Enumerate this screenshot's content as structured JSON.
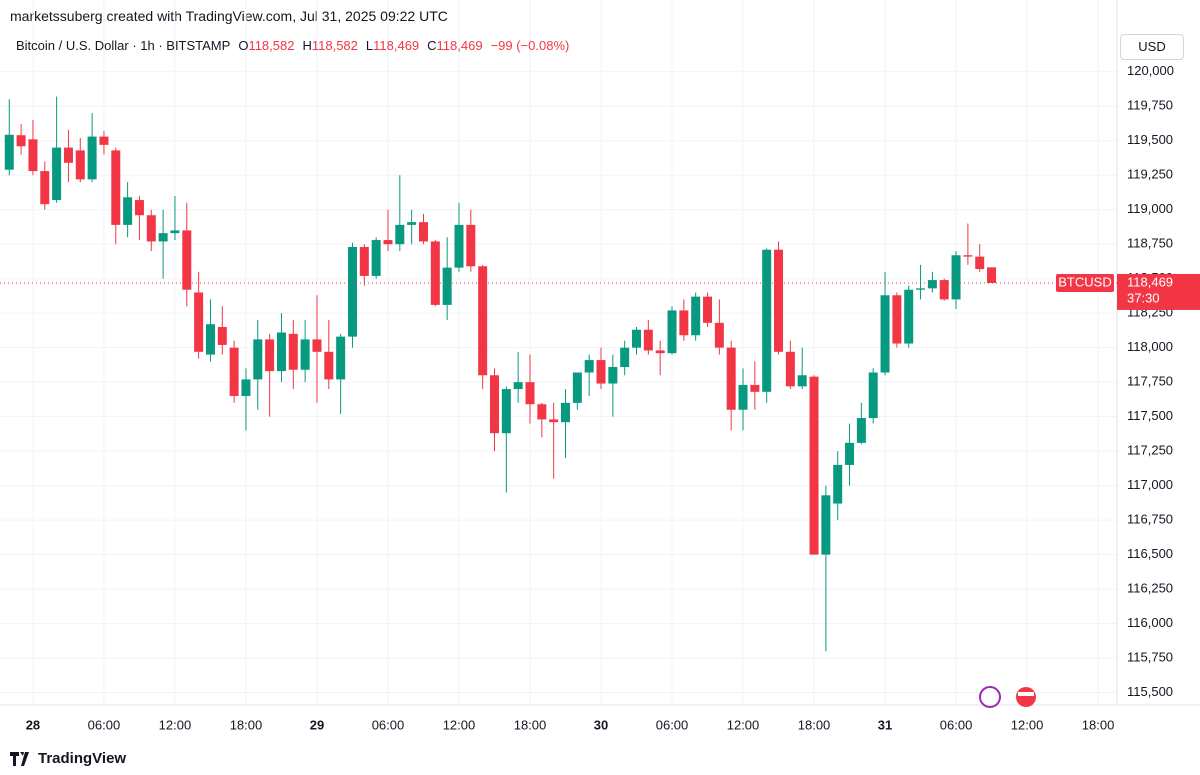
{
  "header": {
    "credit": "marketssuberg created with TradingView.com, Jul 31, 2025 09:22 UTC",
    "symbol": "Bitcoin / U.S. Dollar · 1h · BITSTAMP",
    "ohlc": [
      {
        "key": "O",
        "value": "118,582"
      },
      {
        "key": "H",
        "value": "118,582"
      },
      {
        "key": "L",
        "value": "118,469"
      },
      {
        "key": "C",
        "value": "118,469"
      }
    ],
    "change": "−99 (−0.08%)",
    "currency": "USD"
  },
  "footer": {
    "brand": "TradingView"
  },
  "chart_data": {
    "type": "candlestick",
    "up_color": "#089981",
    "down_color": "#f23645",
    "x": [
      "2025-07-27T22:00",
      "2025-07-27T23:00",
      "2025-07-28T00:00",
      "2025-07-28T01:00",
      "2025-07-28T02:00",
      "2025-07-28T03:00",
      "2025-07-28T04:00",
      "2025-07-28T05:00",
      "2025-07-28T06:00",
      "2025-07-28T07:00",
      "2025-07-28T08:00",
      "2025-07-28T09:00",
      "2025-07-28T10:00",
      "2025-07-28T11:00",
      "2025-07-28T12:00",
      "2025-07-28T13:00",
      "2025-07-28T14:00",
      "2025-07-28T15:00",
      "2025-07-28T16:00",
      "2025-07-28T17:00",
      "2025-07-28T18:00",
      "2025-07-28T19:00",
      "2025-07-28T20:00",
      "2025-07-28T21:00",
      "2025-07-28T22:00",
      "2025-07-28T23:00",
      "2025-07-29T00:00",
      "2025-07-29T01:00",
      "2025-07-29T02:00",
      "2025-07-29T03:00",
      "2025-07-29T04:00",
      "2025-07-29T05:00",
      "2025-07-29T06:00",
      "2025-07-29T07:00",
      "2025-07-29T08:00",
      "2025-07-29T09:00",
      "2025-07-29T10:00",
      "2025-07-29T11:00",
      "2025-07-29T12:00",
      "2025-07-29T13:00",
      "2025-07-29T14:00",
      "2025-07-29T15:00",
      "2025-07-29T16:00",
      "2025-07-29T17:00",
      "2025-07-29T18:00",
      "2025-07-29T19:00",
      "2025-07-29T20:00",
      "2025-07-29T21:00",
      "2025-07-29T22:00",
      "2025-07-29T23:00",
      "2025-07-30T00:00",
      "2025-07-30T01:00",
      "2025-07-30T02:00",
      "2025-07-30T03:00",
      "2025-07-30T04:00",
      "2025-07-30T05:00",
      "2025-07-30T06:00",
      "2025-07-30T07:00",
      "2025-07-30T08:00",
      "2025-07-30T09:00",
      "2025-07-30T10:00",
      "2025-07-30T11:00",
      "2025-07-30T12:00",
      "2025-07-30T13:00",
      "2025-07-30T14:00",
      "2025-07-30T15:00",
      "2025-07-30T16:00",
      "2025-07-30T17:00",
      "2025-07-30T18:00",
      "2025-07-30T19:00",
      "2025-07-30T20:00",
      "2025-07-30T21:00",
      "2025-07-30T22:00",
      "2025-07-30T23:00",
      "2025-07-31T00:00",
      "2025-07-31T01:00",
      "2025-07-31T02:00",
      "2025-07-31T03:00",
      "2025-07-31T04:00",
      "2025-07-31T05:00",
      "2025-07-31T06:00",
      "2025-07-31T07:00",
      "2025-07-31T08:00",
      "2025-07-31T09:00"
    ],
    "open": [
      119290,
      119540,
      119510,
      119280,
      119070,
      119450,
      119430,
      119220,
      119530,
      119430,
      118890,
      119070,
      118960,
      118770,
      118830,
      118850,
      118400,
      117950,
      118150,
      118000,
      117650,
      117770,
      118060,
      117830,
      118100,
      117840,
      118060,
      117970,
      117770,
      118080,
      118730,
      118520,
      118780,
      118750,
      118890,
      118910,
      118770,
      118310,
      118580,
      118890,
      118590,
      117800,
      117380,
      117700,
      117750,
      117590,
      117480,
      117460,
      117600,
      117820,
      117910,
      117740,
      117860,
      118000,
      118130,
      117980,
      117960,
      118270,
      118090,
      118370,
      118180,
      118000,
      117550,
      117730,
      117680,
      118710,
      117970,
      117720,
      117790,
      116500,
      116870,
      117150,
      117310,
      117490,
      117820,
      118380,
      118030,
      118420,
      118430,
      118490,
      118350,
      118670,
      118660,
      118582
    ],
    "high": [
      119800,
      119620,
      119650,
      119350,
      119820,
      119580,
      119520,
      119700,
      119570,
      119450,
      119200,
      119100,
      119000,
      119000,
      119100,
      119050,
      118550,
      118350,
      118300,
      118050,
      117850,
      118200,
      118100,
      118250,
      118200,
      118200,
      118380,
      118200,
      118100,
      118760,
      118750,
      118800,
      119000,
      119250,
      119000,
      118970,
      118780,
      118800,
      119050,
      119000,
      118600,
      117850,
      117720,
      117970,
      117950,
      117600,
      117600,
      117700,
      117820,
      117950,
      118000,
      117950,
      118050,
      118150,
      118200,
      118050,
      118300,
      118350,
      118400,
      118400,
      118350,
      118050,
      117850,
      117900,
      118720,
      118770,
      118050,
      118000,
      117800,
      117000,
      117250,
      117450,
      117600,
      117850,
      118550,
      118400,
      118450,
      118600,
      118550,
      118500,
      118700,
      118900,
      118750,
      118582
    ],
    "low": [
      119250,
      119400,
      119250,
      119000,
      119050,
      119200,
      119200,
      119200,
      119400,
      118750,
      118800,
      118780,
      118700,
      118500,
      118780,
      118300,
      117920,
      117900,
      117950,
      117600,
      117400,
      117550,
      117500,
      117750,
      117700,
      117750,
      117600,
      117700,
      117520,
      118000,
      118450,
      118500,
      118700,
      118700,
      118750,
      118750,
      118300,
      118200,
      118550,
      118550,
      117700,
      117250,
      116950,
      117600,
      117450,
      117350,
      117050,
      117200,
      117550,
      117650,
      117700,
      117500,
      117800,
      117950,
      117950,
      117800,
      117950,
      118050,
      118050,
      118150,
      117950,
      117400,
      117400,
      117550,
      117600,
      117950,
      117700,
      117700,
      116500,
      115800,
      116750,
      117000,
      117300,
      117450,
      117800,
      118000,
      118000,
      118350,
      118400,
      118340,
      118280,
      118600,
      118550,
      118469
    ],
    "close": [
      119543,
      119460,
      119280,
      119040,
      119450,
      119340,
      119220,
      119530,
      119470,
      118890,
      119090,
      118960,
      118770,
      118830,
      118850,
      118420,
      117970,
      118170,
      118020,
      117650,
      117770,
      118060,
      117830,
      118110,
      117840,
      118060,
      117970,
      117770,
      118080,
      118730,
      118520,
      118780,
      118750,
      118890,
      118910,
      118770,
      118310,
      118580,
      118890,
      118590,
      117800,
      117380,
      117700,
      117750,
      117590,
      117480,
      117460,
      117600,
      117820,
      117910,
      117740,
      117860,
      118000,
      118130,
      117980,
      117960,
      118270,
      118090,
      118370,
      118180,
      118000,
      117550,
      117730,
      117680,
      118710,
      117970,
      117720,
      117800,
      116500,
      116930,
      117150,
      117310,
      117490,
      117820,
      118380,
      118030,
      118420,
      118430,
      118490,
      118350,
      118670,
      118660,
      118570,
      118469
    ],
    "ylim": [
      115410,
      120520
    ],
    "yticks": [
      {
        "value": 115500,
        "label": "115,500"
      },
      {
        "value": 115750,
        "label": "115,750"
      },
      {
        "value": 116000,
        "label": "116,000"
      },
      {
        "value": 116250,
        "label": "116,250"
      },
      {
        "value": 116500,
        "label": "116,500"
      },
      {
        "value": 116750,
        "label": "116,750"
      },
      {
        "value": 117000,
        "label": "117,000"
      },
      {
        "value": 117250,
        "label": "117,250"
      },
      {
        "value": 117500,
        "label": "117,500"
      },
      {
        "value": 117750,
        "label": "117,750"
      },
      {
        "value": 118000,
        "label": "118,000"
      },
      {
        "value": 118250,
        "label": "118,250"
      },
      {
        "value": 118500,
        "label": "118,500"
      },
      {
        "value": 118750,
        "label": "118,750"
      },
      {
        "value": 119000,
        "label": "119,000"
      },
      {
        "value": 119250,
        "label": "119,250"
      },
      {
        "value": 119500,
        "label": "119,500"
      },
      {
        "value": 119750,
        "label": "119,750"
      },
      {
        "value": 120000,
        "label": "120,000"
      }
    ],
    "xlim": [
      "2025-07-27T21:13",
      "2025-07-31T19:36"
    ],
    "xticks": [
      {
        "value": "2025-07-28T00:00",
        "label": "28"
      },
      {
        "value": "2025-07-28T06:00",
        "label": "06:00"
      },
      {
        "value": "2025-07-28T12:00",
        "label": "12:00"
      },
      {
        "value": "2025-07-28T18:00",
        "label": "18:00"
      },
      {
        "value": "2025-07-29T00:00",
        "label": "29"
      },
      {
        "value": "2025-07-29T06:00",
        "label": "06:00"
      },
      {
        "value": "2025-07-29T12:00",
        "label": "12:00"
      },
      {
        "value": "2025-07-29T18:00",
        "label": "18:00"
      },
      {
        "value": "2025-07-30T00:00",
        "label": "30"
      },
      {
        "value": "2025-07-30T06:00",
        "label": "06:00"
      },
      {
        "value": "2025-07-30T12:00",
        "label": "12:00"
      },
      {
        "value": "2025-07-30T18:00",
        "label": "18:00"
      },
      {
        "value": "2025-07-31T00:00",
        "label": "31"
      },
      {
        "value": "2025-07-31T06:00",
        "label": "06:00"
      },
      {
        "value": "2025-07-31T12:00",
        "label": "12:00"
      },
      {
        "value": "2025-07-31T18:00",
        "label": "18:00"
      }
    ],
    "grid": true,
    "last_price": {
      "value": 118469,
      "label": "118,469",
      "symbol": "BTCUSD",
      "countdown": "37:30",
      "color": "#f23645"
    }
  }
}
